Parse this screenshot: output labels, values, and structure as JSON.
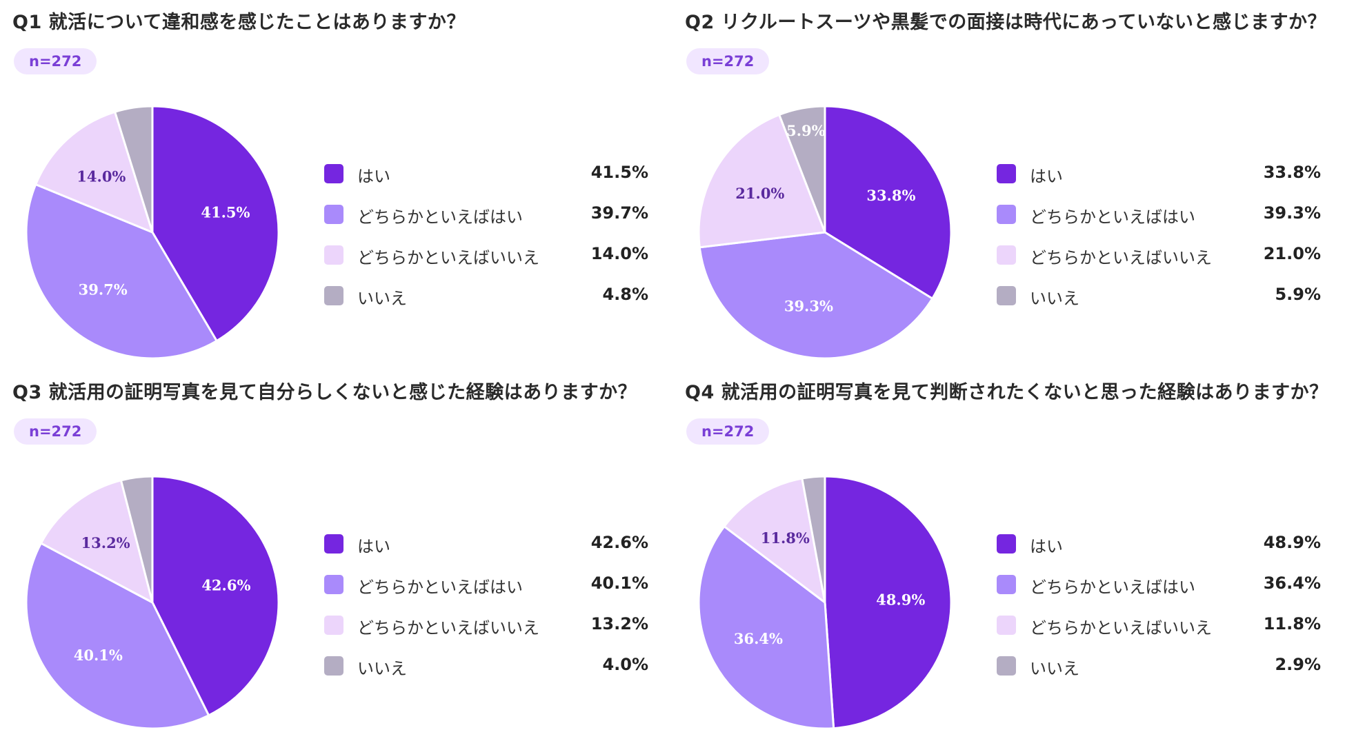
{
  "colors": {
    "yes": "#7526e0",
    "rather_yes": "#a98afb",
    "rather_no": "#ecd5fb",
    "no": "#b4adc3"
  },
  "chart_data": [
    {
      "type": "pie",
      "title": "Q1 就活について違和感を感じたことはありますか？",
      "n_label": "n=272",
      "categories": [
        "はい",
        "どちらかといえばはい",
        "どちらかといえばいいえ",
        "いいえ"
      ],
      "values": [
        41.5,
        39.7,
        14.0,
        4.8
      ],
      "value_labels": [
        "41.5%",
        "39.7%",
        "14.0%",
        "4.8%"
      ],
      "slice_labels": [
        "41.5%",
        "39.7%",
        "14.0%",
        ""
      ]
    },
    {
      "type": "pie",
      "title": "Q2 リクルートスーツや黒髪での面接は時代にあっていないと感じますか？",
      "n_label": "n=272",
      "categories": [
        "はい",
        "どちらかといえばはい",
        "どちらかといえばいいえ",
        "いいえ"
      ],
      "values": [
        33.8,
        39.3,
        21.0,
        5.9
      ],
      "value_labels": [
        "33.8%",
        "39.3%",
        "21.0%",
        "5.9%"
      ],
      "slice_labels": [
        "33.8%",
        "39.3%",
        "21.0%",
        "5.9%"
      ]
    },
    {
      "type": "pie",
      "title": "Q3 就活用の証明写真を見て自分らしくないと感じた経験はありますか？",
      "n_label": "n=272",
      "categories": [
        "はい",
        "どちらかといえばはい",
        "どちらかといえばいいえ",
        "いいえ"
      ],
      "values": [
        42.6,
        40.1,
        13.2,
        4.0
      ],
      "value_labels": [
        "42.6%",
        "40.1%",
        "13.2%",
        "4.0%"
      ],
      "slice_labels": [
        "42.6%",
        "40.1%",
        "13.2%",
        ""
      ]
    },
    {
      "type": "pie",
      "title": "Q4 就活用の証明写真を見て判断されたくないと思った経験はありますか？",
      "n_label": "n=272",
      "categories": [
        "はい",
        "どちらかといえばはい",
        "どちらかといえばいいえ",
        "いいえ"
      ],
      "values": [
        48.9,
        36.4,
        11.8,
        2.9
      ],
      "value_labels": [
        "48.9%",
        "36.4%",
        "11.8%",
        "2.9%"
      ],
      "slice_labels": [
        "48.9%",
        "36.4%",
        "11.8%",
        ""
      ]
    }
  ]
}
